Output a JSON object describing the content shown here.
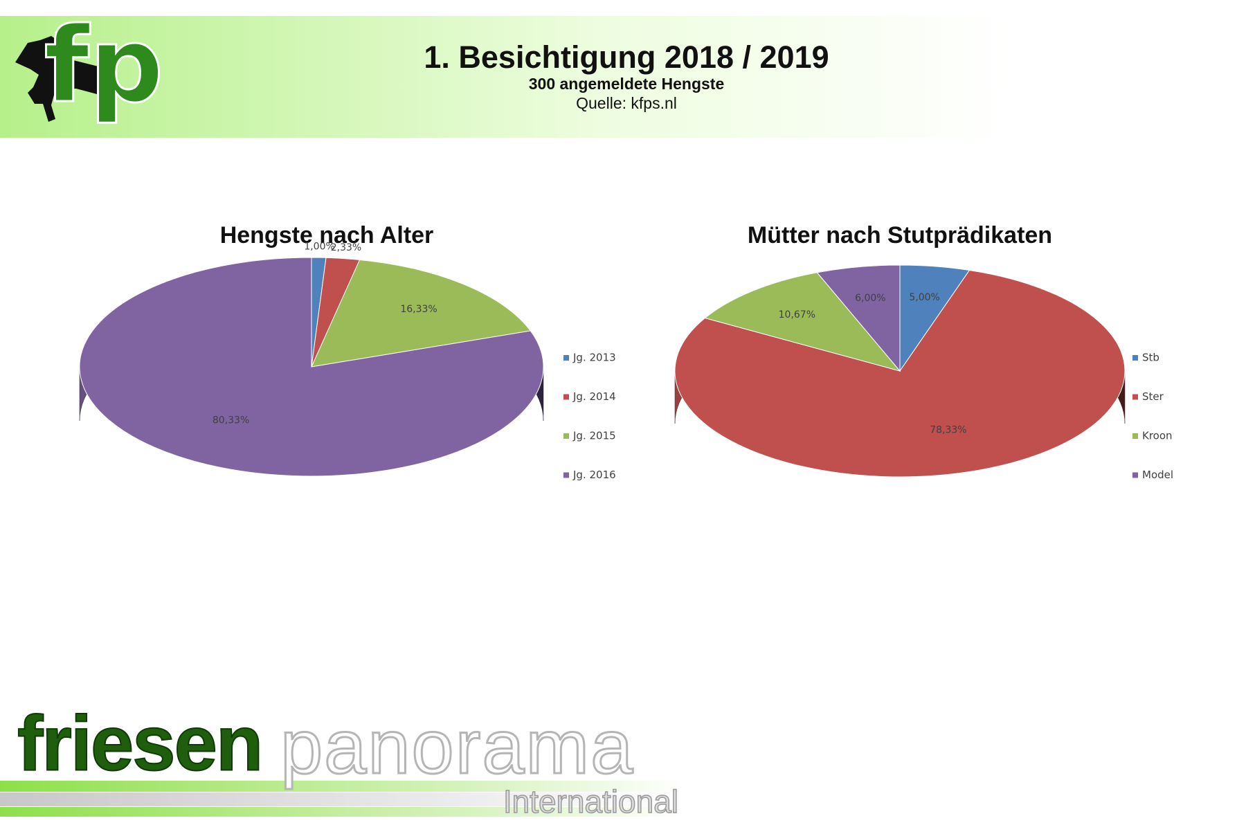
{
  "header": {
    "logo": "fp",
    "title": "1. Besichtigung 2018 / 2019",
    "subtitle": "300 angemeldete Hengste",
    "source": "Quelle: kfps.nl"
  },
  "footer": {
    "brand_bold": "friesen",
    "brand_light": "panorama",
    "brand_sub": "International"
  },
  "chart_data": [
    {
      "type": "pie",
      "title": "Hengste nach Alter",
      "categories": [
        "Jg. 2013",
        "Jg. 2014",
        "Jg. 2015",
        "Jg. 2016"
      ],
      "values": [
        1.0,
        2.33,
        16.33,
        80.33
      ],
      "value_labels": [
        "1,00%",
        "2,33%",
        "16,33%",
        "80,33%"
      ],
      "colors": [
        "#4f81bd",
        "#c0504d",
        "#9bbb59",
        "#8064a2"
      ]
    },
    {
      "type": "pie",
      "title": "Mütter nach Stutprädikaten",
      "categories": [
        "Stb",
        "Ster",
        "Kroon",
        "Model"
      ],
      "values": [
        5.0,
        78.33,
        10.67,
        6.0
      ],
      "value_labels": [
        "5,00%",
        "78,33%",
        "10,67%",
        "6,00%"
      ],
      "colors": [
        "#4f81bd",
        "#c0504d",
        "#9bbb59",
        "#8064a2"
      ]
    }
  ]
}
